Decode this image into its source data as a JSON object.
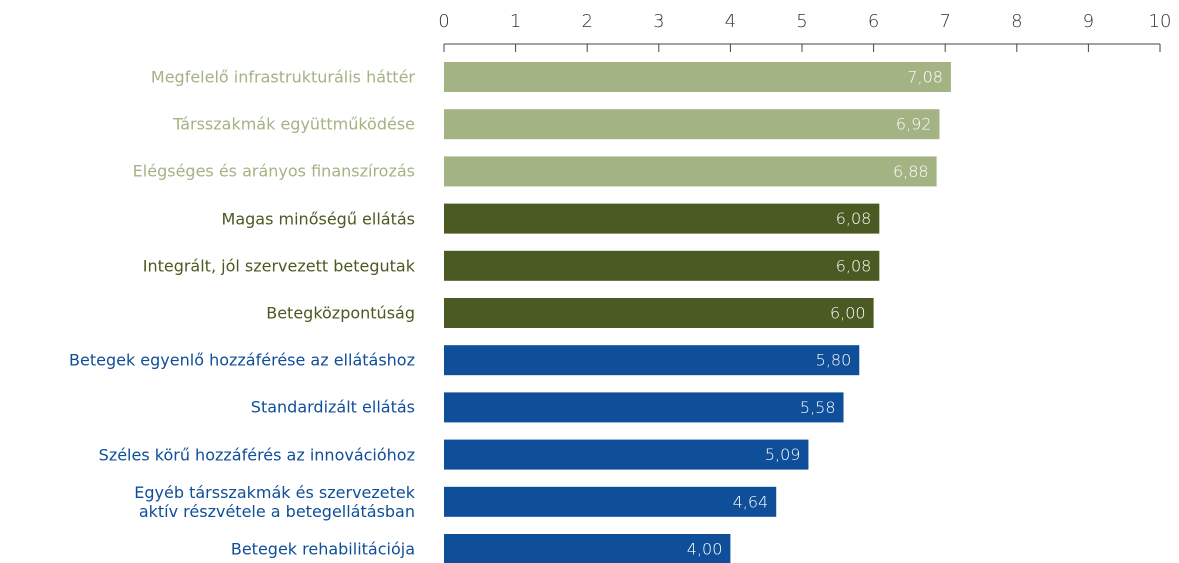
{
  "chart_data": {
    "type": "bar",
    "orientation": "horizontal",
    "categories": [
      "Megfelelő infrastrukturális háttér",
      "Társszakmák együttműködése",
      "Elégséges és arányos finanszírozás",
      "Magas minőségű ellátás",
      "Integrált, jól szervezett betegutak",
      "Betegközpontúság",
      "Betegek egyenlő hozzáférése az ellátáshoz",
      "Standardizált ellátás",
      "Széles körű hozzáférés az innovációhoz",
      "Egyéb társszakmák és szervezetek\naktív részvétele a betegellátásban",
      "Betegek rehabilitációja"
    ],
    "values": [
      7.08,
      6.92,
      6.88,
      6.08,
      6.08,
      6.0,
      5.8,
      5.58,
      5.09,
      4.64,
      4.0
    ],
    "value_labels": [
      "7,08",
      "6,92",
      "6,88",
      "6,08",
      "6,08",
      "6,00",
      "5,80",
      "5,58",
      "5,09",
      "4,64",
      "4,00"
    ],
    "colors": [
      "#a3b384",
      "#a3b384",
      "#a3b384",
      "#4a5a22",
      "#4a5a22",
      "#4a5a22",
      "#0f4e99",
      "#0f4e99",
      "#0f4e99",
      "#0f4e99",
      "#0f4e99"
    ],
    "xlim": [
      0,
      10
    ],
    "xticks": [
      0,
      1,
      2,
      3,
      4,
      5,
      6,
      7,
      8,
      9,
      10
    ]
  }
}
